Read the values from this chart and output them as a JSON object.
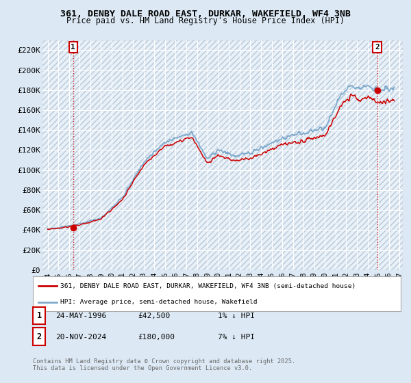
{
  "title_line1": "361, DENBY DALE ROAD EAST, DURKAR, WAKEFIELD, WF4 3NB",
  "title_line2": "Price paid vs. HM Land Registry's House Price Index (HPI)",
  "ylim": [
    0,
    230000
  ],
  "ytick_vals": [
    0,
    20000,
    40000,
    60000,
    80000,
    100000,
    120000,
    140000,
    160000,
    180000,
    200000,
    220000
  ],
  "ytick_labels": [
    "£0",
    "£20K",
    "£40K",
    "£60K",
    "£80K",
    "£100K",
    "£120K",
    "£140K",
    "£160K",
    "£180K",
    "£200K",
    "£220K"
  ],
  "xmin_year": 1994,
  "xmax_year": 2027,
  "xtick_years": [
    1994,
    1995,
    1996,
    1997,
    1998,
    1999,
    2000,
    2001,
    2002,
    2003,
    2004,
    2005,
    2006,
    2007,
    2008,
    2009,
    2010,
    2011,
    2012,
    2013,
    2014,
    2015,
    2016,
    2017,
    2018,
    2019,
    2020,
    2021,
    2022,
    2023,
    2024,
    2025,
    2026,
    2027
  ],
  "sale1_x": 1996.39,
  "sale1_y": 42500,
  "sale1_label": "1",
  "sale2_x": 2024.9,
  "sale2_y": 180000,
  "sale2_label": "2",
  "prop_line_color": "#cc0000",
  "hpi_line_color": "#7eaacc",
  "marker_color": "#cc0000",
  "marker_size": 6,
  "legend_prop": "361, DENBY DALE ROAD EAST, DURKAR, WAKEFIELD, WF4 3NB (semi-detached house)",
  "legend_hpi": "HPI: Average price, semi-detached house, Wakefield",
  "note1_label": "1",
  "note1_date": "24-MAY-1996",
  "note1_price": "£42,500",
  "note1_change": "1% ↓ HPI",
  "note2_label": "2",
  "note2_date": "20-NOV-2024",
  "note2_price": "£180,000",
  "note2_change": "7% ↓ HPI",
  "footer": "Contains HM Land Registry data © Crown copyright and database right 2025.\nThis data is licensed under the Open Government Licence v3.0.",
  "bg_color": "#dce9f5",
  "plot_bg": "#e8f0f8",
  "hatch_color": "#b8c8d8",
  "grid_color": "#ffffff"
}
